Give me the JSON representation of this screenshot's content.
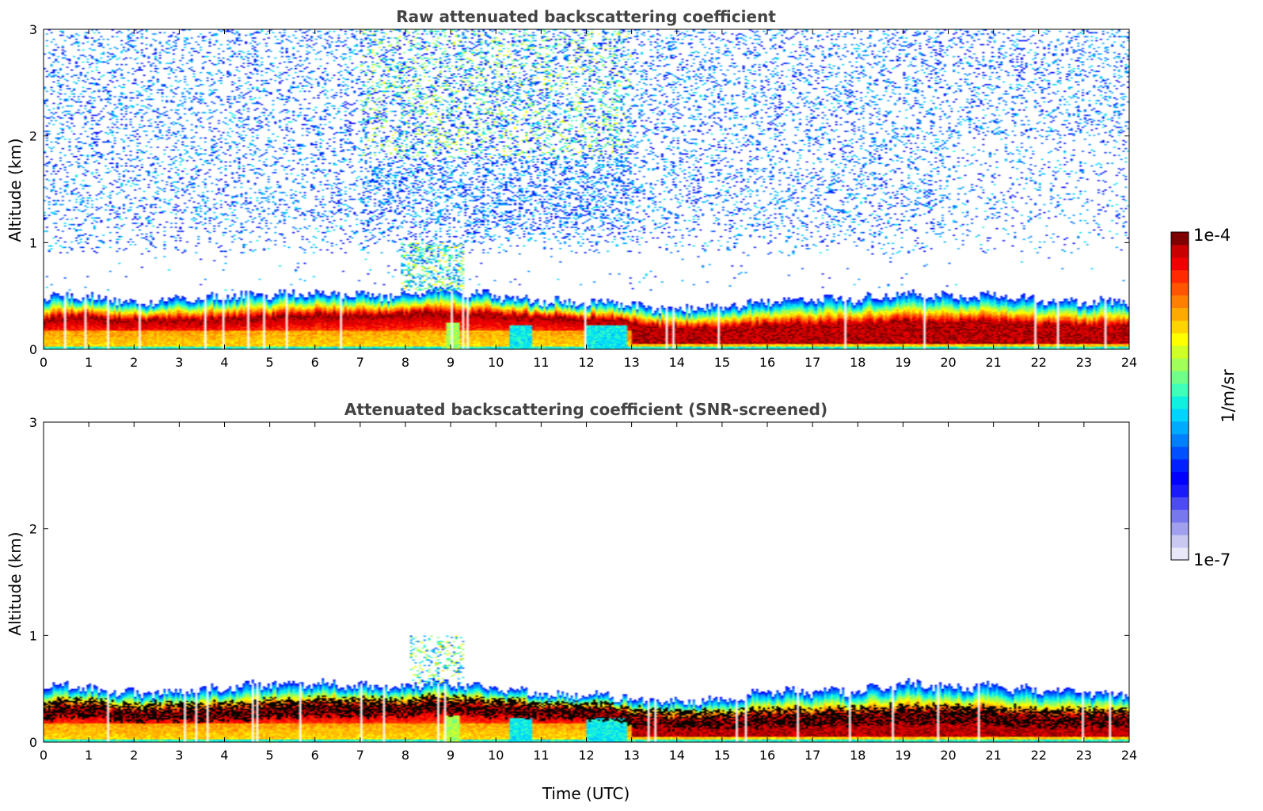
{
  "chart_data": [
    {
      "type": "heatmap",
      "title": "Raw attenuated backscattering coefficient",
      "ylabel": "Altitude (km)",
      "xlabel": "",
      "xlim": [
        0,
        24
      ],
      "ylim": [
        0,
        3
      ],
      "xticks": [
        "0",
        "1",
        "2",
        "3",
        "4",
        "5",
        "6",
        "7",
        "8",
        "9",
        "10",
        "11",
        "12",
        "13",
        "14",
        "15",
        "16",
        "17",
        "18",
        "19",
        "20",
        "21",
        "22",
        "23",
        "24"
      ],
      "yticks": [
        "0",
        "1",
        "2",
        "3"
      ],
      "grid": false,
      "noise_field": {
        "present": true,
        "dense_above_km": 1.3,
        "densest_x_range": [
          7,
          13
        ]
      },
      "layer": {
        "time": [
          0,
          0.5,
          1,
          2,
          3,
          4,
          5,
          6,
          7,
          8,
          8.5,
          9,
          9.5,
          10,
          11,
          12,
          12.8,
          13,
          14,
          15,
          16,
          17,
          18,
          19,
          20,
          21,
          22,
          23,
          24
        ],
        "top_km": [
          0.45,
          0.52,
          0.48,
          0.45,
          0.47,
          0.49,
          0.52,
          0.52,
          0.52,
          0.5,
          0.56,
          0.55,
          0.52,
          0.5,
          0.45,
          0.44,
          0.43,
          0.4,
          0.38,
          0.4,
          0.45,
          0.46,
          0.47,
          0.52,
          0.5,
          0.5,
          0.47,
          0.45,
          0.45
        ],
        "core_km": [
          0.27,
          0.3,
          0.3,
          0.27,
          0.27,
          0.28,
          0.3,
          0.32,
          0.32,
          0.32,
          0.35,
          0.33,
          0.33,
          0.32,
          0.3,
          0.28,
          0.27,
          0.23,
          0.2,
          0.2,
          0.22,
          0.23,
          0.23,
          0.25,
          0.25,
          0.25,
          0.22,
          0.22,
          0.22
        ]
      },
      "pulse_event_km": [
        0.55,
        1.0
      ],
      "pulse_event_time": [
        7.9,
        9.3
      ]
    },
    {
      "type": "heatmap",
      "title": "Attenuated backscattering coefficient (SNR-screened)",
      "ylabel": "Altitude (km)",
      "xlabel": "Time (UTC)",
      "xlim": [
        0,
        24
      ],
      "ylim": [
        0,
        3
      ],
      "xticks": [
        "0",
        "1",
        "2",
        "3",
        "4",
        "5",
        "6",
        "7",
        "8",
        "9",
        "10",
        "11",
        "12",
        "13",
        "14",
        "15",
        "16",
        "17",
        "18",
        "19",
        "20",
        "21",
        "22",
        "23",
        "24"
      ],
      "yticks": [
        "0",
        "1",
        "2",
        "3"
      ],
      "grid": false,
      "noise_field": {
        "present": false
      },
      "layer": {
        "time": [
          0,
          0.5,
          1,
          2,
          3,
          4,
          5,
          6,
          7,
          8,
          8.5,
          9,
          9.5,
          10,
          11,
          12,
          12.8,
          13,
          14,
          15,
          16,
          17,
          18,
          19,
          20,
          21,
          22,
          23,
          24
        ],
        "top_km": [
          0.48,
          0.55,
          0.5,
          0.45,
          0.48,
          0.5,
          0.55,
          0.55,
          0.53,
          0.52,
          0.56,
          0.55,
          0.52,
          0.5,
          0.45,
          0.44,
          0.43,
          0.4,
          0.38,
          0.4,
          0.47,
          0.47,
          0.48,
          0.55,
          0.52,
          0.52,
          0.48,
          0.46,
          0.46
        ],
        "core_km": [
          0.28,
          0.32,
          0.3,
          0.27,
          0.27,
          0.28,
          0.3,
          0.32,
          0.32,
          0.32,
          0.35,
          0.33,
          0.33,
          0.32,
          0.3,
          0.28,
          0.27,
          0.23,
          0.2,
          0.2,
          0.22,
          0.23,
          0.23,
          0.25,
          0.25,
          0.25,
          0.22,
          0.22,
          0.22
        ]
      },
      "pulse_event_km": [
        0.55,
        1.0
      ],
      "pulse_event_time": [
        8.1,
        9.3
      ]
    }
  ],
  "colorbar": {
    "label": "1/m/sr",
    "max_label": "1e-4",
    "min_label": "1e-7",
    "colors": [
      "#e8e8f8",
      "#c8c8f0",
      "#a0a0ee",
      "#7878ee",
      "#4c4cf2",
      "#1a1afa",
      "#0000ff",
      "#0020ff",
      "#0050ff",
      "#0080ff",
      "#00aaff",
      "#00d4ff",
      "#10f0e0",
      "#40ffb8",
      "#70ff88",
      "#a0ff58",
      "#d0ff28",
      "#ffff00",
      "#ffd400",
      "#ffaa00",
      "#ff8000",
      "#ff5500",
      "#ff2a00",
      "#f00000",
      "#c80000",
      "#7f0000"
    ]
  },
  "texts": {
    "top_title": "Raw attenuated backscattering coefficient",
    "bottom_title": "Attenuated backscattering coefficient (SNR-screened)",
    "ylabel_top": "Altitude (km)",
    "ylabel_bottom": "Altitude (km)",
    "xlabel": "Time (UTC)"
  }
}
